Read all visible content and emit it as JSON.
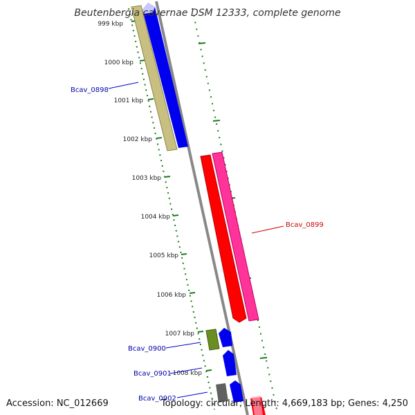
{
  "title": "Beutenbergia cavernae DSM 12333, complete genome",
  "ticks": [
    {
      "label": "999 kbp"
    },
    {
      "label": "1000 kbp"
    },
    {
      "label": "1001 kbp"
    },
    {
      "label": "1002 kbp"
    },
    {
      "label": "1003 kbp"
    },
    {
      "label": "1004 kbp"
    },
    {
      "label": "1005 kbp"
    },
    {
      "label": "1006 kbp"
    },
    {
      "label": "1007 kbp"
    },
    {
      "label": "1008 kbp"
    }
  ],
  "gene_labels": {
    "bcav_0898": "Bcav_0898",
    "bcav_0899": "Bcav_0899",
    "bcav_0900": "Bcav_0900",
    "bcav_0901": "Bcav_0901",
    "bcav_0902": "Bcav_0902"
  },
  "footer": {
    "accession": "Accession: NC_012669",
    "summary": "Topology: circular; Length: 4,669,183 bp; Genes: 4,250"
  },
  "colors": {
    "forward_gene": "#0000ee",
    "reverse_gene": "#ff0000",
    "cds_khaki": "#c8c080",
    "cds_pink": "#ff3399",
    "cds_olive": "#6b8e23",
    "backbone": "#888888",
    "ticks": "#1a7a1a",
    "label_blue": "#0000aa",
    "label_red": "#cc0000"
  }
}
